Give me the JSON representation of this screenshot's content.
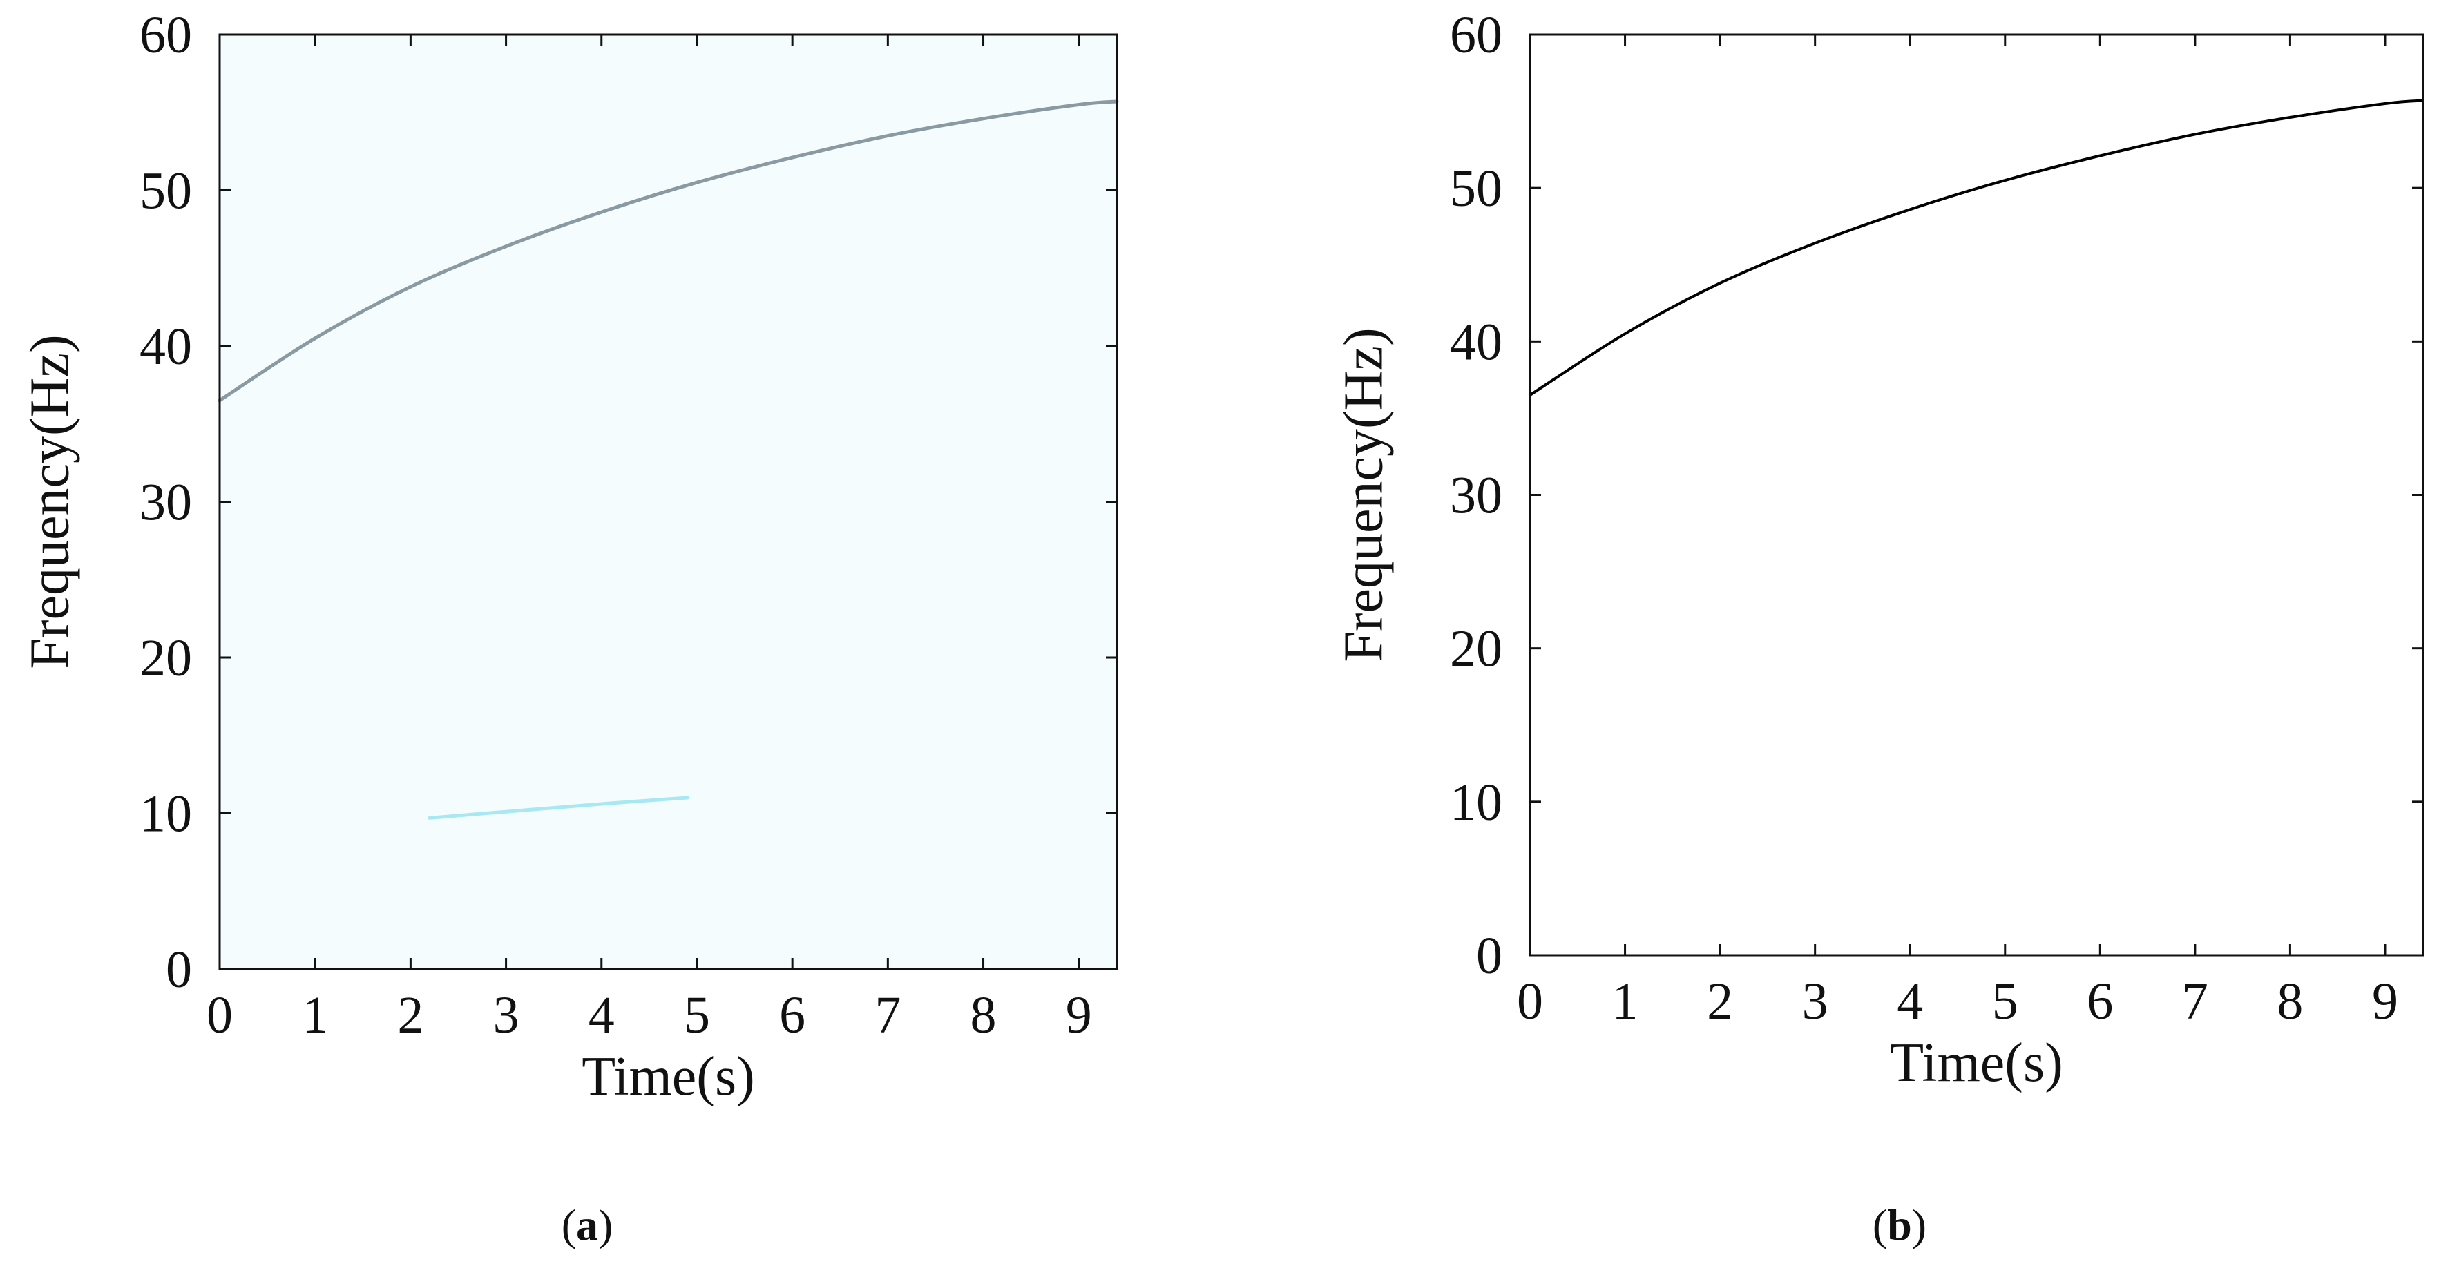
{
  "chart_data": [
    {
      "type": "heatmap",
      "panel": "a",
      "caption_letter": "a",
      "xlabel": "Time(s)",
      "ylabel": "Frequency(Hz)",
      "xlim": [
        0,
        9.4
      ],
      "ylim": [
        0,
        60
      ],
      "xticks": [
        0,
        1,
        2,
        3,
        4,
        5,
        6,
        7,
        8,
        9
      ],
      "yticks": [
        0,
        10,
        20,
        30,
        40,
        50,
        60
      ],
      "grid": false,
      "background_color": "#f4fcfd",
      "series": [
        {
          "color": "#8a9aa2",
          "x": [
            0,
            1,
            2,
            3,
            4,
            5,
            6,
            7,
            8,
            9,
            9.4
          ],
          "y": [
            36.5,
            40.5,
            43.8,
            46.4,
            48.6,
            50.5,
            52.1,
            53.5,
            54.6,
            55.5,
            55.7
          ]
        },
        {
          "color": "#a8e8f2",
          "x": [
            2.2,
            3,
            4,
            4.9
          ],
          "y": [
            9.7,
            10.1,
            10.6,
            11.0
          ]
        }
      ]
    },
    {
      "type": "line",
      "panel": "b",
      "caption_letter": "b",
      "xlabel": "Time(s)",
      "ylabel": "Frequency(Hz)",
      "xlim": [
        0,
        9.4
      ],
      "ylim": [
        0,
        60
      ],
      "xticks": [
        0,
        1,
        2,
        3,
        4,
        5,
        6,
        7,
        8,
        9
      ],
      "yticks": [
        0,
        10,
        20,
        30,
        40,
        50,
        60
      ],
      "grid": false,
      "series": [
        {
          "color": "#000000",
          "x": [
            0,
            1,
            2,
            3,
            4,
            5,
            6,
            7,
            8,
            9,
            9.4
          ],
          "y": [
            36.5,
            40.5,
            43.8,
            46.4,
            48.6,
            50.5,
            52.1,
            53.5,
            54.6,
            55.5,
            55.7
          ]
        }
      ]
    }
  ]
}
